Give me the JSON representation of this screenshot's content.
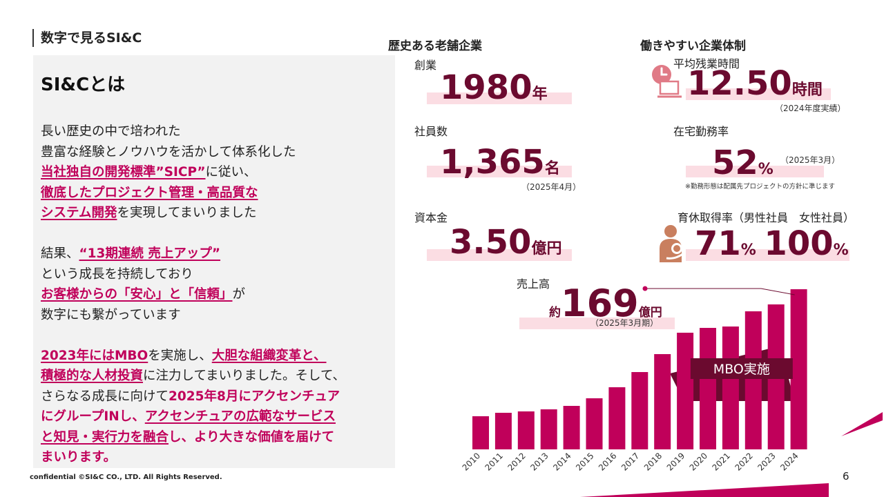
{
  "header": {
    "title": "数字で見るSI&C"
  },
  "left": {
    "heading": "SI&Cとは",
    "lines": [
      [
        {
          "t": "長い歴史の中で培われた"
        }
      ],
      [
        {
          "t": "豊富な経験とノウハウを活かして体系化した"
        }
      ],
      [
        {
          "t": "当社独自の開発標準”SICP”",
          "s": "hl"
        },
        {
          "t": "に従い、"
        }
      ],
      [
        {
          "t": "徹底したプロジェクト管理・高品質な",
          "s": "hl"
        }
      ],
      [
        {
          "t": "システム開発",
          "s": "hl"
        },
        {
          "t": "を実現してまいりました"
        }
      ],
      [],
      [
        {
          "t": "結果、"
        },
        {
          "t": "“13期連続 売上アップ”",
          "s": "hl"
        }
      ],
      [
        {
          "t": "という成長を持続しており"
        }
      ],
      [
        {
          "t": "お客様からの「安心」と「信頼」",
          "s": "hl"
        },
        {
          "t": "が"
        }
      ],
      [
        {
          "t": "数字にも繋がっています"
        }
      ],
      [],
      [
        {
          "t": "2023年にはMBO",
          "s": "hl"
        },
        {
          "t": "を実施し、"
        },
        {
          "t": "大胆な組織変革と、",
          "s": "hl"
        }
      ],
      [
        {
          "t": "積極的な人材投資",
          "s": "hl"
        },
        {
          "t": "に注力してまいりました。そして、"
        }
      ],
      [
        {
          "t": "さらなる成長に向けて"
        },
        {
          "t": "2025年8月にアクセンチュア",
          "s": "em"
        }
      ],
      [
        {
          "t": "にグループINし、",
          "s": "em"
        },
        {
          "t": "アクセンチュアの広範なサービス",
          "s": "hl"
        }
      ],
      [
        {
          "t": "と知見・実行力を融合",
          "s": "hl"
        },
        {
          "t": "し、より大きな価値を届けて",
          "s": "em"
        }
      ],
      [
        {
          "t": "まいります。",
          "s": "em"
        }
      ]
    ]
  },
  "history": {
    "heading": "歴史ある老舗企業",
    "founded": {
      "label": "創業",
      "value": "1980",
      "unit": "年"
    },
    "employees": {
      "label": "社員数",
      "value": "1,365",
      "unit": "名",
      "note": "（2025年4月）"
    },
    "capital": {
      "label": "資本金",
      "value": "3.50",
      "unit": "億円"
    }
  },
  "workstyle": {
    "heading": "働きやすい企業体制",
    "overtime": {
      "label": "平均残業時間",
      "value": "12.50",
      "unit": "時間",
      "note": "（2024年度実績）",
      "icon": "clock-laptop-icon"
    },
    "remote": {
      "label": "在宅勤務率",
      "value": "52",
      "unit": "%",
      "note": "（2025年3月）",
      "small_note": "※勤務形態は配属先プロジェクトの方針に準じます"
    },
    "leave": {
      "label": "育休取得率（男性社員　女性社員）",
      "male_value": "71",
      "female_value": "100",
      "unit": "%",
      "icon": "parent-child-icon"
    }
  },
  "sales": {
    "label": "売上高",
    "prefix": "約",
    "value": "169",
    "unit": "億円",
    "note": "（2025年3月期）",
    "mbo_label": "MBO実施"
  },
  "colors": {
    "accent": "#c0005a",
    "dark": "#6b0a2f",
    "bar_bg": "#fbdde3",
    "panel": "#f2f2f2"
  },
  "chart_data": {
    "type": "bar",
    "categories": [
      "2010",
      "2011",
      "2012",
      "2013",
      "2014",
      "2015",
      "2016",
      "2017",
      "2018",
      "2019",
      "2020",
      "2021",
      "2022",
      "2023",
      "2024"
    ],
    "values": [
      48,
      53,
      55,
      58,
      63,
      74,
      90,
      112,
      138,
      169,
      176,
      178,
      200,
      210,
      232
    ],
    "ylim": [
      0,
      232
    ],
    "axis": false,
    "annotation": "MBO実施"
  },
  "footer": {
    "copyright": "confidential ©SI&C CO., LTD. All Rights Reserved.",
    "page": "6"
  }
}
